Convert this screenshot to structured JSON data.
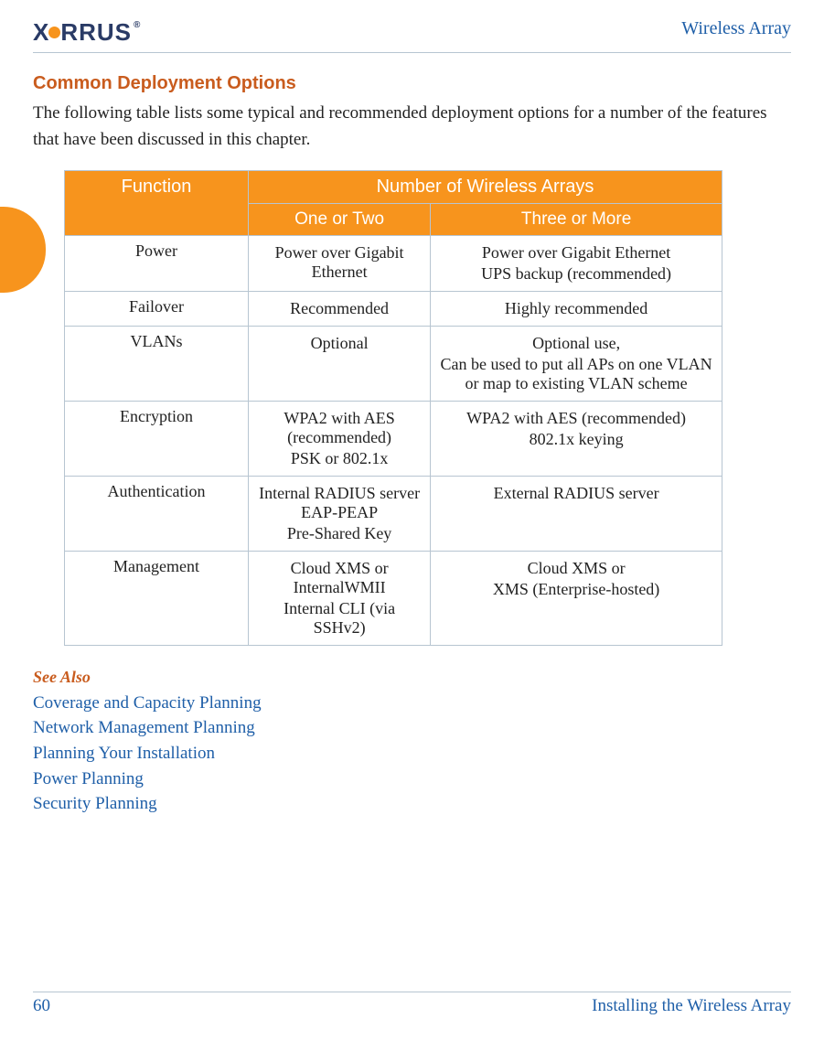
{
  "header": {
    "brand_prefix": "X",
    "brand_suffix": "RRUS",
    "doc_title": "Wireless Array"
  },
  "section": {
    "heading": "Common Deployment Options",
    "intro": "The following table lists some typical and recommended deployment options for a number of the features that have been discussed in this chapter."
  },
  "table": {
    "col_function": "Function",
    "col_group": "Number of Wireless Arrays",
    "sub_left": "One or Two",
    "sub_right": "Three or More",
    "rows": [
      {
        "fn": "Power",
        "left": [
          "Power over Gigabit Ethernet"
        ],
        "right": [
          "Power over Gigabit Ethernet",
          "UPS backup (recommended)"
        ]
      },
      {
        "fn": "Failover",
        "left": [
          "Recommended"
        ],
        "right": [
          "Highly recommended"
        ]
      },
      {
        "fn": "VLANs",
        "left": [
          "Optional"
        ],
        "right": [
          "Optional use,",
          "Can be used to put all APs on one VLAN or map to existing VLAN scheme"
        ]
      },
      {
        "fn": "Encryption",
        "left": [
          "WPA2 with AES (recommended)",
          "PSK or 802.1x"
        ],
        "right": [
          "WPA2 with AES (recommended)",
          "802.1x keying"
        ]
      },
      {
        "fn": "Authentication",
        "left": [
          "Internal RADIUS server EAP-PEAP",
          "Pre-Shared Key"
        ],
        "right": [
          "External RADIUS server"
        ]
      },
      {
        "fn": "Management",
        "left": [
          "Cloud XMS or InternalWMII",
          "Internal CLI (via SSHv2)"
        ],
        "right": [
          "Cloud XMS or",
          "XMS (Enterprise-hosted)"
        ]
      }
    ]
  },
  "see_also": {
    "label": "See Also",
    "links": [
      "Coverage and Capacity Planning",
      "Network Management Planning",
      "Planning Your Installation",
      "Power Planning",
      "Security Planning"
    ]
  },
  "footer": {
    "page_number": "60",
    "chapter": "Installing the Wireless Array"
  },
  "style": {
    "orange": "#f7941d",
    "blue": "#1f5fa8",
    "heading": "#c95c1e",
    "border": "#b7c5d1"
  }
}
